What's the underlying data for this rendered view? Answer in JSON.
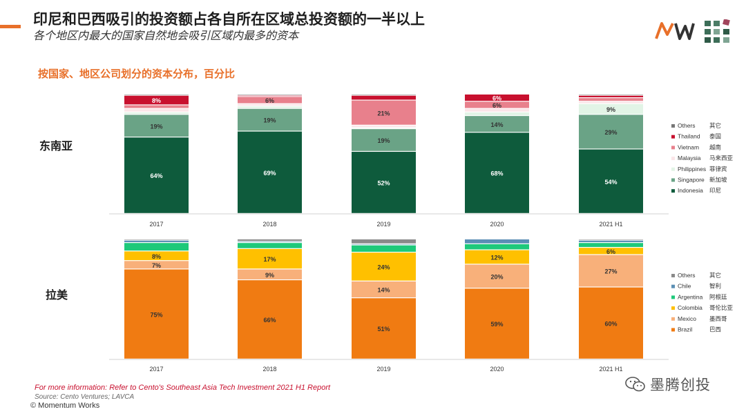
{
  "header": {
    "title": "印尼和巴西吸引的投资额占各自所在区域总投资额的一半以上",
    "subtitle": "各个地区内最大的国家自然地会吸引区域内最多的资本",
    "section_title": "按国家、地区公司划分的资本分布，百分比"
  },
  "footer": {
    "info": "For more information: Refer to Cento's Southeast Asia Tech Investment 2021 H1 Report",
    "source": "Source: Cento Ventures; LAVCA",
    "copyright": "© Momentum Works"
  },
  "watermark": {
    "text": "墨腾创投"
  },
  "chart_data": [
    {
      "type": "bar",
      "stacked": true,
      "normalized": true,
      "region": "东南亚",
      "categories": [
        "2017",
        "2018",
        "2019",
        "2020",
        "2021 H1"
      ],
      "series": [
        {
          "name": "Indonesia",
          "name_cn": "印尼",
          "color": "#0e5b3c",
          "values": [
            64,
            69,
            52,
            68,
            54
          ],
          "labels": [
            "64%",
            "69%",
            "52%",
            "68%",
            "54%"
          ]
        },
        {
          "name": "Singapore",
          "name_cn": "新加坡",
          "color": "#6aa386",
          "values": [
            19,
            19,
            19,
            14,
            29
          ],
          "labels": [
            "19%",
            "19%",
            "19%",
            "14%",
            "29%"
          ]
        },
        {
          "name": "Philippines",
          "name_cn": "菲律宾",
          "color": "#e2f4e6",
          "values": [
            2,
            2,
            1,
            3,
            9
          ],
          "labels": [
            "",
            "",
            "",
            "",
            "9%"
          ]
        },
        {
          "name": "Malaysia",
          "name_cn": "马来西亚",
          "color": "#fbe5e8",
          "values": [
            3,
            2,
            2,
            3,
            2
          ],
          "labels": [
            "",
            "",
            "",
            "",
            ""
          ]
        },
        {
          "name": "Vietnam",
          "name_cn": "越南",
          "color": "#e8808c",
          "values": [
            3,
            6,
            21,
            6,
            3
          ],
          "labels": [
            "",
            "6%",
            "21%",
            "6%",
            ""
          ]
        },
        {
          "name": "Thailand",
          "name_cn": "泰国",
          "color": "#c8102e",
          "values": [
            8,
            1,
            4,
            6,
            2
          ],
          "labels": [
            "8%",
            "",
            "",
            "6%",
            ""
          ]
        },
        {
          "name": "Others",
          "name_cn": "其它",
          "color": "#777777",
          "values": [
            1,
            1,
            1,
            0,
            1
          ],
          "labels": [
            "",
            "",
            "",
            "",
            ""
          ]
        }
      ],
      "ylim": [
        0,
        100
      ]
    },
    {
      "type": "bar",
      "stacked": true,
      "normalized": true,
      "region": "拉美",
      "categories": [
        "2017",
        "2018",
        "2019",
        "2020",
        "2021 H1"
      ],
      "series": [
        {
          "name": "Brazil",
          "name_cn": "巴西",
          "color": "#f07b12",
          "values": [
            75,
            66,
            51,
            59,
            60
          ],
          "labels": [
            "75%",
            "66%",
            "51%",
            "59%",
            "60%"
          ]
        },
        {
          "name": "Mexico",
          "name_cn": "墨西哥",
          "color": "#f8b07a",
          "values": [
            7,
            9,
            14,
            20,
            27
          ],
          "labels": [
            "7%",
            "9%",
            "14%",
            "20%",
            "27%"
          ]
        },
        {
          "name": "Colombia",
          "name_cn": "哥伦比亚",
          "color": "#ffc000",
          "values": [
            8,
            17,
            24,
            12,
            6
          ],
          "labels": [
            "8%",
            "17%",
            "24%",
            "12%",
            "6%"
          ]
        },
        {
          "name": "Argentina",
          "name_cn": "阿根廷",
          "color": "#1ec97a",
          "values": [
            7,
            5,
            6,
            5,
            4
          ],
          "labels": [
            "",
            "",
            "",
            "",
            ""
          ]
        },
        {
          "name": "Chile",
          "name_cn": "智利",
          "color": "#5b8fb5",
          "values": [
            2,
            1,
            1,
            4,
            2
          ],
          "labels": [
            "",
            "",
            "",
            "",
            ""
          ]
        },
        {
          "name": "Others",
          "name_cn": "其它",
          "color": "#8a8a8a",
          "values": [
            1,
            2,
            4,
            0,
            1
          ],
          "labels": [
            "",
            "",
            "",
            "",
            ""
          ]
        }
      ],
      "ylim": [
        0,
        100
      ]
    }
  ]
}
